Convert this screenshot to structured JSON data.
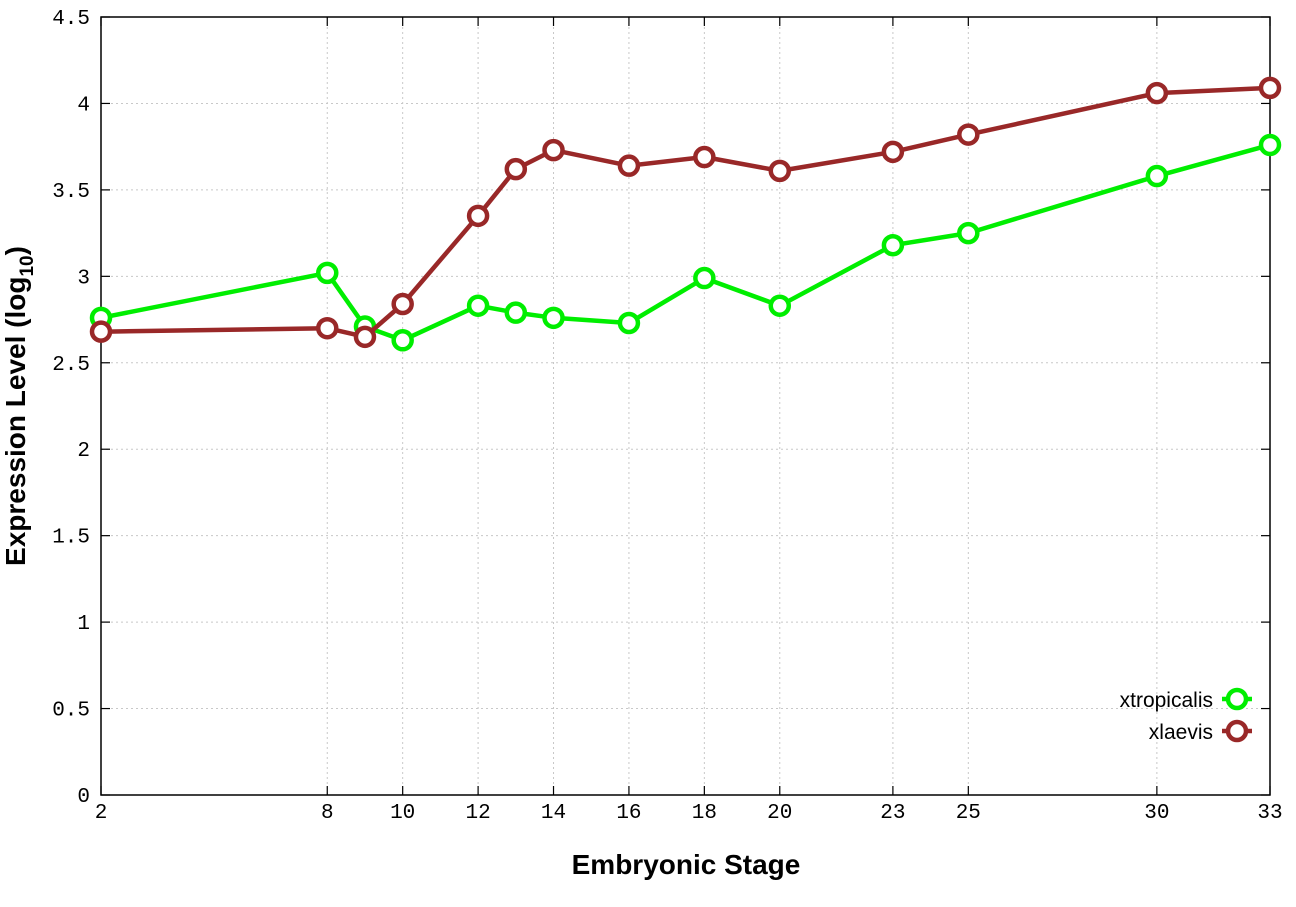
{
  "chart_data": {
    "type": "line",
    "title": "",
    "xlabel": "Embryonic Stage",
    "ylabel_main": "Expression Level (log",
    "ylabel_sub": "10",
    "ylabel_close": ")",
    "xlim": [
      2,
      33
    ],
    "ylim": [
      0,
      4.5
    ],
    "grid": true,
    "legend_position": "bottom-right",
    "x_ticks": [
      2,
      8,
      10,
      12,
      14,
      16,
      18,
      20,
      23,
      25,
      30,
      33
    ],
    "y_ticks": [
      {
        "value": 0,
        "label": "0"
      },
      {
        "value": 0.5,
        "label": "0.5"
      },
      {
        "value": 1,
        "label": "1"
      },
      {
        "value": 1.5,
        "label": "1.5"
      },
      {
        "value": 2,
        "label": "2"
      },
      {
        "value": 2.5,
        "label": "2.5"
      },
      {
        "value": 3,
        "label": "3"
      },
      {
        "value": 3.5,
        "label": "3.5"
      },
      {
        "value": 4,
        "label": "4"
      },
      {
        "value": 4.5,
        "label": "4.5"
      }
    ],
    "x": [
      2,
      8,
      9,
      10,
      12,
      13,
      14,
      16,
      18,
      20,
      23,
      25,
      30,
      33
    ],
    "series": [
      {
        "name": "xtropicalis",
        "color": "#00ee00",
        "values": [
          2.76,
          3.02,
          2.71,
          2.63,
          2.83,
          2.79,
          2.76,
          2.73,
          2.99,
          2.83,
          3.18,
          3.25,
          3.58,
          3.76
        ]
      },
      {
        "name": "xlaevis",
        "color": "#992828",
        "values": [
          2.68,
          2.7,
          2.65,
          2.84,
          3.35,
          3.62,
          3.73,
          3.64,
          3.69,
          3.61,
          3.72,
          3.82,
          4.06,
          4.09
        ]
      }
    ]
  }
}
